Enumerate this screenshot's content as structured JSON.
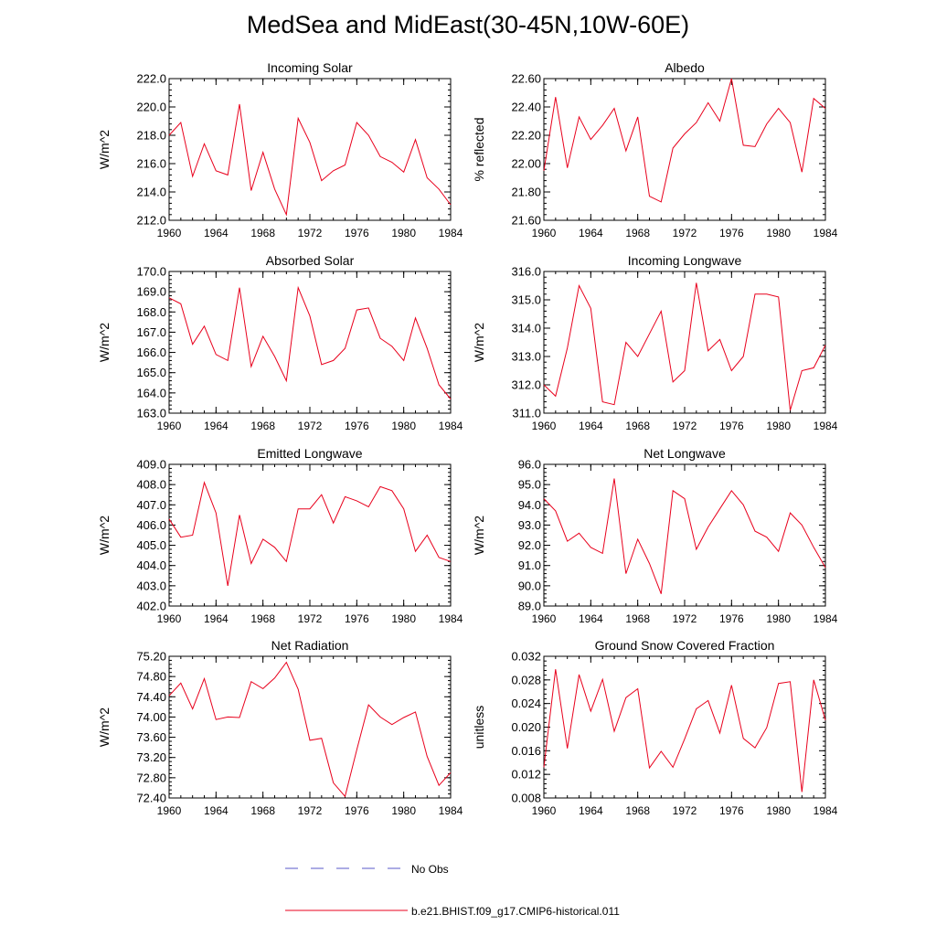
{
  "page": {
    "title": "MedSea and MidEast(30-45N,10W-60E)",
    "series_color": "#e8001c",
    "obs_color": "#5a5ac8"
  },
  "legend": {
    "obs_label": "No Obs",
    "model_label": "b.e21.BHIST.f09_g17.CMIP6-historical.011"
  },
  "chart_data": [
    {
      "type": "line",
      "title": "Incoming Solar",
      "ylabel": "W/m^2",
      "xlim": [
        1960,
        1984
      ],
      "ylim": [
        212.0,
        222.0
      ],
      "xticks": [
        1960,
        1964,
        1968,
        1972,
        1976,
        1980,
        1984
      ],
      "xticklabels": [
        "1960",
        "1964",
        "1968",
        "1972",
        "1976",
        "1980",
        "1984"
      ],
      "yticks": [
        212.0,
        214.0,
        216.0,
        218.0,
        220.0,
        222.0
      ],
      "yticklabels": [
        "212.0",
        "214.0",
        "216.0",
        "218.0",
        "220.0",
        "222.0"
      ],
      "series": [
        {
          "name": "b.e21.BHIST.f09_g17.CMIP6-historical.011",
          "x": [
            1960,
            1961,
            1962,
            1963,
            1964,
            1965,
            1966,
            1967,
            1968,
            1969,
            1970,
            1971,
            1972,
            1973,
            1974,
            1975,
            1976,
            1977,
            1978,
            1979,
            1980,
            1981,
            1982,
            1983,
            1984
          ],
          "values": [
            218.0,
            218.9,
            215.1,
            217.4,
            215.5,
            215.2,
            220.2,
            214.1,
            216.8,
            214.2,
            212.4,
            219.2,
            217.5,
            214.8,
            215.5,
            215.9,
            218.9,
            218.0,
            216.5,
            216.1,
            215.4,
            217.7,
            215.0,
            214.2,
            213.1
          ]
        }
      ]
    },
    {
      "type": "line",
      "title": "Albedo",
      "ylabel": "% reflected",
      "xlim": [
        1960,
        1984
      ],
      "ylim": [
        21.6,
        22.6
      ],
      "xticks": [
        1960,
        1964,
        1968,
        1972,
        1976,
        1980,
        1984
      ],
      "xticklabels": [
        "1960",
        "1964",
        "1968",
        "1972",
        "1976",
        "1980",
        "1984"
      ],
      "yticks": [
        21.6,
        21.8,
        22.0,
        22.2,
        22.4,
        22.6
      ],
      "yticklabels": [
        "21.60",
        "21.80",
        "22.00",
        "22.20",
        "22.40",
        "22.60"
      ],
      "series": [
        {
          "name": "b.e21.BHIST.f09_g17.CMIP6-historical.011",
          "x": [
            1960,
            1961,
            1962,
            1963,
            1964,
            1965,
            1966,
            1967,
            1968,
            1969,
            1970,
            1971,
            1972,
            1973,
            1974,
            1975,
            1976,
            1977,
            1978,
            1979,
            1980,
            1981,
            1982,
            1983,
            1984
          ],
          "values": [
            21.95,
            22.47,
            21.97,
            22.33,
            22.17,
            22.27,
            22.39,
            22.09,
            22.33,
            21.77,
            21.73,
            22.11,
            22.21,
            22.29,
            22.43,
            22.3,
            22.6,
            22.13,
            22.12,
            22.28,
            22.39,
            22.29,
            21.94,
            22.46,
            22.39
          ]
        }
      ]
    },
    {
      "type": "line",
      "title": "Absorbed Solar",
      "ylabel": "W/m^2",
      "xlim": [
        1960,
        1984
      ],
      "ylim": [
        163.0,
        170.0
      ],
      "xticks": [
        1960,
        1964,
        1968,
        1972,
        1976,
        1980,
        1984
      ],
      "xticklabels": [
        "1960",
        "1964",
        "1968",
        "1972",
        "1976",
        "1980",
        "1984"
      ],
      "yticks": [
        163.0,
        164.0,
        165.0,
        166.0,
        167.0,
        168.0,
        169.0,
        170.0
      ],
      "yticklabels": [
        "163.0",
        "164.0",
        "165.0",
        "166.0",
        "167.0",
        "168.0",
        "169.0",
        "170.0"
      ],
      "series": [
        {
          "name": "b.e21.BHIST.f09_g17.CMIP6-historical.011",
          "x": [
            1960,
            1961,
            1962,
            1963,
            1964,
            1965,
            1966,
            1967,
            1968,
            1969,
            1970,
            1971,
            1972,
            1973,
            1974,
            1975,
            1976,
            1977,
            1978,
            1979,
            1980,
            1981,
            1982,
            1983,
            1984
          ],
          "values": [
            168.7,
            168.4,
            166.4,
            167.3,
            165.9,
            165.6,
            169.2,
            165.3,
            166.8,
            165.8,
            164.6,
            169.2,
            167.8,
            165.4,
            165.6,
            166.2,
            168.1,
            168.2,
            166.7,
            166.3,
            165.6,
            167.7,
            166.2,
            164.4,
            163.7
          ]
        }
      ]
    },
    {
      "type": "line",
      "title": "Incoming Longwave",
      "ylabel": "W/m^2",
      "xlim": [
        1960,
        1984
      ],
      "ylim": [
        311.0,
        316.0
      ],
      "xticks": [
        1960,
        1964,
        1968,
        1972,
        1976,
        1980,
        1984
      ],
      "xticklabels": [
        "1960",
        "1964",
        "1968",
        "1972",
        "1976",
        "1980",
        "1984"
      ],
      "yticks": [
        311.0,
        312.0,
        313.0,
        314.0,
        315.0,
        316.0
      ],
      "yticklabels": [
        "311.0",
        "312.0",
        "313.0",
        "314.0",
        "315.0",
        "316.0"
      ],
      "series": [
        {
          "name": "b.e21.BHIST.f09_g17.CMIP6-historical.011",
          "x": [
            1960,
            1961,
            1962,
            1963,
            1964,
            1965,
            1966,
            1967,
            1968,
            1969,
            1970,
            1971,
            1972,
            1973,
            1974,
            1975,
            1976,
            1977,
            1978,
            1979,
            1980,
            1981,
            1982,
            1983,
            1984
          ],
          "values": [
            312.0,
            311.6,
            313.3,
            315.5,
            314.7,
            311.4,
            311.3,
            313.5,
            313.0,
            313.8,
            314.6,
            312.1,
            312.5,
            315.6,
            313.2,
            313.6,
            312.5,
            313.0,
            315.2,
            315.2,
            315.1,
            311.1,
            312.5,
            312.6,
            313.4
          ]
        }
      ]
    },
    {
      "type": "line",
      "title": "Emitted Longwave",
      "ylabel": "W/m^2",
      "xlim": [
        1960,
        1984
      ],
      "ylim": [
        402.0,
        409.0
      ],
      "xticks": [
        1960,
        1964,
        1968,
        1972,
        1976,
        1980,
        1984
      ],
      "xticklabels": [
        "1960",
        "1964",
        "1968",
        "1972",
        "1976",
        "1980",
        "1984"
      ],
      "yticks": [
        402.0,
        403.0,
        404.0,
        405.0,
        406.0,
        407.0,
        408.0,
        409.0
      ],
      "yticklabels": [
        "402.0",
        "403.0",
        "404.0",
        "405.0",
        "406.0",
        "407.0",
        "408.0",
        "409.0"
      ],
      "series": [
        {
          "name": "b.e21.BHIST.f09_g17.CMIP6-historical.011",
          "x": [
            1960,
            1961,
            1962,
            1963,
            1964,
            1965,
            1966,
            1967,
            1968,
            1969,
            1970,
            1971,
            1972,
            1973,
            1974,
            1975,
            1976,
            1977,
            1978,
            1979,
            1980,
            1981,
            1982,
            1983,
            1984
          ],
          "values": [
            406.3,
            405.4,
            405.5,
            408.1,
            406.6,
            403.0,
            406.5,
            404.1,
            405.3,
            404.9,
            404.2,
            406.8,
            406.8,
            407.5,
            406.1,
            407.4,
            407.2,
            406.9,
            407.9,
            407.7,
            406.8,
            404.7,
            405.5,
            404.4,
            404.2
          ]
        }
      ]
    },
    {
      "type": "line",
      "title": "Net Longwave",
      "ylabel": "W/m^2",
      "xlim": [
        1960,
        1984
      ],
      "ylim": [
        89.0,
        96.0
      ],
      "xticks": [
        1960,
        1964,
        1968,
        1972,
        1976,
        1980,
        1984
      ],
      "xticklabels": [
        "1960",
        "1964",
        "1968",
        "1972",
        "1976",
        "1980",
        "1984"
      ],
      "yticks": [
        89.0,
        90.0,
        91.0,
        92.0,
        93.0,
        94.0,
        95.0,
        96.0
      ],
      "yticklabels": [
        "89.0",
        "90.0",
        "91.0",
        "92.0",
        "93.0",
        "94.0",
        "95.0",
        "96.0"
      ],
      "series": [
        {
          "name": "b.e21.BHIST.f09_g17.CMIP6-historical.011",
          "x": [
            1960,
            1961,
            1962,
            1963,
            1964,
            1965,
            1966,
            1967,
            1968,
            1969,
            1970,
            1971,
            1972,
            1973,
            1974,
            1975,
            1976,
            1977,
            1978,
            1979,
            1980,
            1981,
            1982,
            1983,
            1984
          ],
          "values": [
            94.3,
            93.7,
            92.2,
            92.6,
            91.9,
            91.6,
            95.3,
            90.6,
            92.3,
            91.1,
            89.6,
            94.7,
            94.3,
            91.8,
            92.9,
            93.8,
            94.7,
            94.0,
            92.7,
            92.4,
            91.7,
            93.6,
            93.0,
            91.9,
            90.9
          ]
        }
      ]
    },
    {
      "type": "line",
      "title": "Net Radiation",
      "ylabel": "W/m^2",
      "xlim": [
        1960,
        1984
      ],
      "ylim": [
        72.4,
        75.2
      ],
      "xticks": [
        1960,
        1964,
        1968,
        1972,
        1976,
        1980,
        1984
      ],
      "xticklabels": [
        "1960",
        "1964",
        "1968",
        "1972",
        "1976",
        "1980",
        "1984"
      ],
      "yticks": [
        72.4,
        72.8,
        73.2,
        73.6,
        74.0,
        74.4,
        74.8,
        75.2
      ],
      "yticklabels": [
        "72.40",
        "72.80",
        "73.20",
        "73.60",
        "74.00",
        "74.40",
        "74.80",
        "75.20"
      ],
      "series": [
        {
          "name": "b.e21.BHIST.f09_g17.CMIP6-historical.011",
          "x": [
            1960,
            1961,
            1962,
            1963,
            1964,
            1965,
            1966,
            1967,
            1968,
            1969,
            1970,
            1971,
            1972,
            1973,
            1974,
            1975,
            1976,
            1977,
            1978,
            1979,
            1980,
            1981,
            1982,
            1983,
            1984
          ],
          "values": [
            74.42,
            74.67,
            74.16,
            74.76,
            73.95,
            74.0,
            73.99,
            74.7,
            74.56,
            74.77,
            75.08,
            74.55,
            73.54,
            73.58,
            72.7,
            72.43,
            73.35,
            74.24,
            74.0,
            73.85,
            73.99,
            74.1,
            73.22,
            72.65,
            72.9
          ]
        }
      ]
    },
    {
      "type": "line",
      "title": "Ground Snow Covered Fraction",
      "ylabel": "unitless",
      "xlim": [
        1960,
        1984
      ],
      "ylim": [
        0.008,
        0.032
      ],
      "xticks": [
        1960,
        1964,
        1968,
        1972,
        1976,
        1980,
        1984
      ],
      "xticklabels": [
        "1960",
        "1964",
        "1968",
        "1972",
        "1976",
        "1980",
        "1984"
      ],
      "yticks": [
        0.008,
        0.012,
        0.016,
        0.02,
        0.024,
        0.028,
        0.032
      ],
      "yticklabels": [
        "0.008",
        "0.012",
        "0.016",
        "0.020",
        "0.024",
        "0.028",
        "0.032"
      ],
      "series": [
        {
          "name": "b.e21.BHIST.f09_g17.CMIP6-historical.011",
          "x": [
            1960,
            1961,
            1962,
            1963,
            1964,
            1965,
            1966,
            1967,
            1968,
            1969,
            1970,
            1971,
            1972,
            1973,
            1974,
            1975,
            1976,
            1977,
            1978,
            1979,
            1980,
            1981,
            1982,
            1983,
            1984
          ],
          "values": [
            0.0132,
            0.0298,
            0.0164,
            0.0289,
            0.0227,
            0.0281,
            0.0193,
            0.025,
            0.0265,
            0.0131,
            0.0159,
            0.0132,
            0.018,
            0.0231,
            0.0245,
            0.019,
            0.0271,
            0.0181,
            0.0165,
            0.0199,
            0.0274,
            0.0277,
            0.009,
            0.028,
            0.0212
          ]
        }
      ]
    }
  ]
}
